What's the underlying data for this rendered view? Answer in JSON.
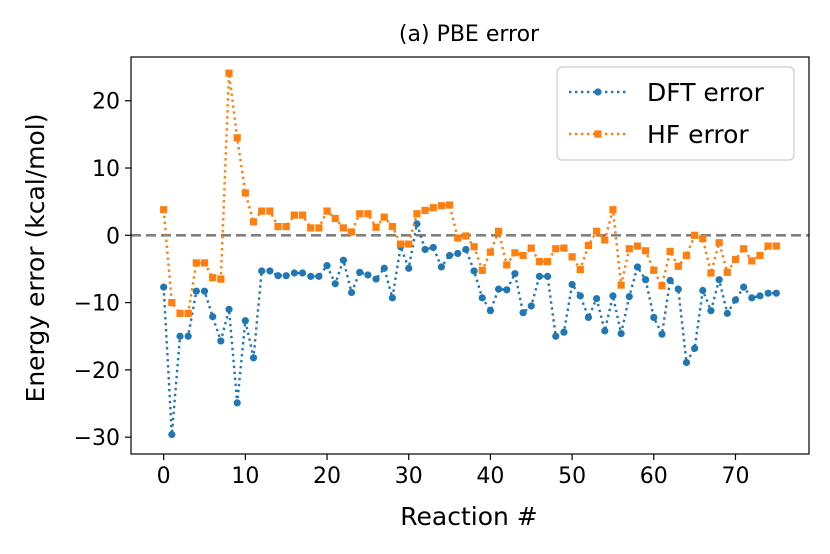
{
  "chart_data": {
    "type": "line",
    "title": "(a) PBE error",
    "xlabel": "Reaction #",
    "ylabel": "Energy error (kcal/mol)",
    "xlim": [
      -4,
      79
    ],
    "ylim": [
      -32.5,
      26.5
    ],
    "xticks": [
      0,
      10,
      20,
      30,
      40,
      50,
      60,
      70
    ],
    "yticks": [
      -30,
      -20,
      -10,
      0,
      10,
      20
    ],
    "grid": false,
    "legend_position": "top-right",
    "reference_line": {
      "y": 0,
      "style": "dashed",
      "color": "#808080"
    },
    "x": [
      0,
      1,
      2,
      3,
      4,
      5,
      6,
      7,
      8,
      9,
      10,
      11,
      12,
      13,
      14,
      15,
      16,
      17,
      18,
      19,
      20,
      21,
      22,
      23,
      24,
      25,
      26,
      27,
      28,
      29,
      30,
      31,
      32,
      33,
      34,
      35,
      36,
      37,
      38,
      39,
      40,
      41,
      42,
      43,
      44,
      45,
      46,
      47,
      48,
      49,
      50,
      51,
      52,
      53,
      54,
      55,
      56,
      57,
      58,
      59,
      60,
      61,
      62,
      63,
      64,
      65,
      66,
      67,
      68,
      69,
      70,
      71,
      72,
      73,
      74,
      75
    ],
    "series": [
      {
        "name": "DFT error",
        "color": "#1f77b4",
        "marker": "circle",
        "linestyle": "dotted",
        "values": [
          -7.7,
          -29.6,
          -15.0,
          -15.0,
          -8.3,
          -8.3,
          -12.1,
          -15.7,
          -11.0,
          -24.9,
          -12.7,
          -18.2,
          -5.3,
          -5.3,
          -6.0,
          -6.0,
          -5.6,
          -5.6,
          -6.1,
          -6.1,
          -4.5,
          -7.2,
          -3.7,
          -8.5,
          -5.5,
          -5.9,
          -6.5,
          -4.9,
          -9.3,
          -1.7,
          -4.9,
          1.7,
          -2.1,
          -1.8,
          -4.7,
          -3.0,
          -2.7,
          -2.1,
          -5.3,
          -9.3,
          -11.2,
          -8.0,
          -8.1,
          -5.7,
          -11.5,
          -10.5,
          -6.1,
          -6.1,
          -15.0,
          -14.4,
          -7.3,
          -9.0,
          -12.2,
          -9.4,
          -14.2,
          -9.0,
          -14.6,
          -9.1,
          -4.7,
          -6.6,
          -12.2,
          -14.7,
          -6.7,
          -8.0,
          -18.9,
          -16.8,
          -8.2,
          -11.2,
          -6.6,
          -11.6,
          -9.6,
          -7.7,
          -9.3,
          -9.0,
          -8.6,
          -8.6
        ]
      },
      {
        "name": "HF error",
        "color": "#ff7f0e",
        "marker": "square",
        "linestyle": "dotted",
        "values": [
          3.8,
          -10.0,
          -11.6,
          -11.6,
          -4.1,
          -4.1,
          -6.3,
          -6.5,
          24.1,
          14.5,
          6.3,
          2.0,
          3.6,
          3.6,
          1.3,
          1.3,
          3.0,
          3.0,
          1.1,
          1.1,
          3.6,
          2.5,
          1.1,
          0.5,
          3.2,
          3.2,
          1.2,
          2.7,
          1.3,
          -1.3,
          -1.3,
          3.2,
          3.7,
          4.1,
          4.4,
          4.5,
          -0.4,
          -0.1,
          -1.7,
          -5.2,
          -2.5,
          0.6,
          -4.4,
          -2.6,
          -3.0,
          -1.9,
          -3.9,
          -3.9,
          -2.0,
          -1.9,
          -3.2,
          -5.1,
          -1.5,
          0.6,
          -0.7,
          3.8,
          -7.4,
          -2.0,
          -1.6,
          -2.3,
          -5.2,
          -7.5,
          -2.4,
          -4.6,
          -3.0,
          0.0,
          -0.5,
          -5.6,
          -1.1,
          -5.5,
          -3.6,
          -2.0,
          -3.8,
          -3.0,
          -1.6,
          -1.6
        ]
      }
    ]
  }
}
